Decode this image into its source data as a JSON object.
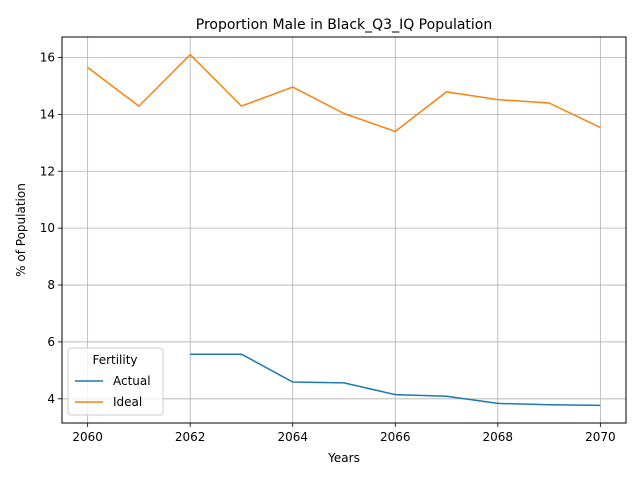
{
  "chart_data": {
    "type": "line",
    "title": "Proportion Male in Black_Q3_IQ Population",
    "xlabel": "Years",
    "ylabel": "% of Population",
    "xlim": [
      2059.5,
      2070.5
    ],
    "ylim": [
      3.15,
      16.72
    ],
    "x_ticks": [
      2060,
      2062,
      2064,
      2066,
      2068,
      2070
    ],
    "y_ticks": [
      4,
      6,
      8,
      10,
      12,
      14,
      16
    ],
    "grid": true,
    "legend": {
      "title": "Fertility",
      "placement": "lower-left"
    },
    "series": [
      {
        "name": "Actual",
        "color": "#1f77b4",
        "x": [
          2062,
          2063,
          2064,
          2065,
          2066,
          2067,
          2068,
          2069,
          2070
        ],
        "y": [
          5.57,
          5.57,
          4.59,
          4.56,
          4.15,
          4.09,
          3.84,
          3.79,
          3.77
        ]
      },
      {
        "name": "Ideal",
        "color": "#ff7f0e",
        "x": [
          2060,
          2061,
          2062,
          2063,
          2064,
          2065,
          2066,
          2067,
          2068,
          2069,
          2070
        ],
        "y": [
          15.65,
          14.29,
          16.1,
          14.29,
          14.96,
          14.03,
          13.4,
          14.79,
          14.52,
          14.4,
          13.54
        ]
      }
    ]
  }
}
